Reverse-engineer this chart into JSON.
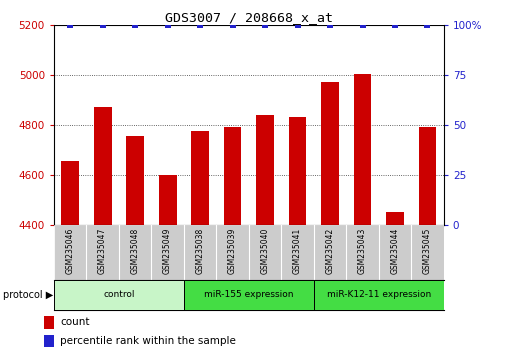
{
  "title": "GDS3007 / 208668_x_at",
  "samples": [
    "GSM235046",
    "GSM235047",
    "GSM235048",
    "GSM235049",
    "GSM235038",
    "GSM235039",
    "GSM235040",
    "GSM235041",
    "GSM235042",
    "GSM235043",
    "GSM235044",
    "GSM235045"
  ],
  "counts": [
    4655,
    4870,
    4755,
    4600,
    4775,
    4790,
    4840,
    4830,
    4970,
    5005,
    4450,
    4790
  ],
  "percentile_ranks": [
    100,
    100,
    100,
    100,
    100,
    100,
    100,
    100,
    100,
    100,
    100,
    100
  ],
  "group_control": {
    "label": "control",
    "start": 0,
    "end": 3,
    "color": "#c8f5c8"
  },
  "group_mir155": {
    "label": "miR-155 expression",
    "start": 4,
    "end": 7,
    "color": "#44dd44"
  },
  "group_mirK12": {
    "label": "miR-K12-11 expression",
    "start": 8,
    "end": 11,
    "color": "#44dd44"
  },
  "ylim_left": [
    4400,
    5200
  ],
  "ylim_right": [
    0,
    100
  ],
  "yticks_left": [
    4400,
    4600,
    4800,
    5000,
    5200
  ],
  "yticks_right": [
    0,
    25,
    50,
    75,
    100
  ],
  "bar_color": "#cc0000",
  "dot_color": "#2222cc",
  "bar_width": 0.55,
  "left_axis_color": "#cc0000",
  "right_axis_color": "#2222cc",
  "legend_count_color": "#cc0000",
  "legend_pct_color": "#2222cc",
  "grid_color": "#333333",
  "grid_ticks": [
    4600,
    4800,
    5000
  ],
  "sample_box_color": "#cccccc",
  "sample_box_edge": "#aaaaaa"
}
